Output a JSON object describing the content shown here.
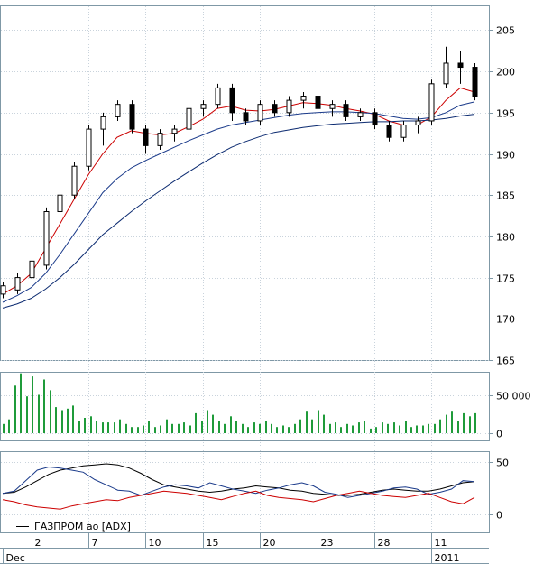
{
  "colors": {
    "frame": "#7f98a6",
    "candle_up_fill": "#ffffff",
    "candle_down_fill": "#000000",
    "candle_edge": "#000000",
    "ma_fast": "#cc0000",
    "ma_mid": "#1a3a8a",
    "ma_slow": "#0b2a70",
    "volume": "#1f9b3a",
    "adx": "#000000",
    "plus_di": "#1a3a8a",
    "minus_di": "#cc0000"
  },
  "legend": {
    "label": "ГАЗПРОМ ао [ADX]"
  },
  "x_axis": {
    "day_labels": [
      {
        "i": 2,
        "label": "2"
      },
      {
        "i": 6,
        "label": "7"
      },
      {
        "i": 10,
        "label": "10"
      },
      {
        "i": 14,
        "label": "15"
      },
      {
        "i": 18,
        "label": "20"
      },
      {
        "i": 22,
        "label": "23"
      },
      {
        "i": 26,
        "label": "28"
      },
      {
        "i": 30,
        "label": "11"
      }
    ],
    "month_labels": [
      {
        "i": 0,
        "label": "Dec"
      },
      {
        "i": 30,
        "label": "2011"
      }
    ]
  },
  "chart_data": [
    {
      "type": "candlestick",
      "panel": "price",
      "ylim": [
        165,
        208
      ],
      "yticks": [
        "165",
        "170",
        "175",
        "180",
        "185",
        "190",
        "195",
        "200",
        "205"
      ],
      "n_bars": 34,
      "ohlc": [
        [
          173.0,
          174.5,
          172.5,
          174.0
        ],
        [
          173.5,
          175.5,
          173.0,
          175.0
        ],
        [
          175.0,
          177.5,
          174.0,
          177.0
        ],
        [
          176.5,
          183.5,
          176.0,
          183.0
        ],
        [
          183.0,
          185.5,
          182.5,
          185.0
        ],
        [
          185.0,
          189.0,
          184.5,
          188.5
        ],
        [
          188.5,
          193.5,
          188.0,
          193.0
        ],
        [
          193.0,
          195.0,
          191.0,
          194.5
        ],
        [
          194.5,
          196.5,
          194.0,
          196.0
        ],
        [
          196.0,
          196.5,
          192.5,
          193.0
        ],
        [
          193.0,
          193.5,
          190.0,
          191.0
        ],
        [
          191.0,
          193.0,
          190.5,
          192.5
        ],
        [
          192.5,
          193.5,
          191.5,
          193.0
        ],
        [
          193.0,
          196.0,
          192.5,
          195.5
        ],
        [
          195.5,
          196.5,
          194.5,
          196.0
        ],
        [
          196.0,
          198.5,
          195.5,
          198.0
        ],
        [
          198.0,
          198.5,
          194.0,
          195.0
        ],
        [
          195.0,
          195.5,
          193.5,
          194.0
        ],
        [
          194.0,
          196.5,
          193.5,
          196.0
        ],
        [
          196.0,
          196.5,
          194.5,
          195.0
        ],
        [
          195.0,
          197.0,
          194.5,
          196.5
        ],
        [
          196.5,
          197.5,
          195.5,
          197.0
        ],
        [
          197.0,
          197.5,
          195.0,
          195.5
        ],
        [
          195.5,
          196.5,
          194.5,
          196.0
        ],
        [
          196.0,
          196.5,
          194.0,
          194.5
        ],
        [
          194.5,
          195.5,
          194.0,
          195.0
        ],
        [
          195.0,
          195.5,
          193.0,
          193.5
        ],
        [
          193.5,
          194.0,
          191.5,
          192.0
        ],
        [
          192.0,
          194.0,
          191.5,
          193.5
        ],
        [
          193.5,
          194.5,
          192.5,
          194.0
        ],
        [
          194.0,
          199.0,
          193.5,
          198.5
        ],
        [
          198.5,
          203.0,
          198.0,
          201.0
        ],
        [
          201.0,
          202.5,
          198.5,
          200.5
        ],
        [
          200.5,
          201.0,
          196.5,
          197.0
        ]
      ],
      "series": [
        {
          "name": "",
          "color_key": "ma_fast",
          "values": [
            173.0,
            174.0,
            175.5,
            178.5,
            181.5,
            184.5,
            187.5,
            190.0,
            192.0,
            192.8,
            192.5,
            192.3,
            192.5,
            193.3,
            194.2,
            195.5,
            195.8,
            195.3,
            195.2,
            195.4,
            195.8,
            196.2,
            196.1,
            195.9,
            195.5,
            195.2,
            194.8,
            194.0,
            193.5,
            193.5,
            194.5,
            196.5,
            198.0,
            197.5
          ]
        },
        {
          "name": "",
          "color_key": "ma_mid",
          "values": [
            172.0,
            172.8,
            173.8,
            175.5,
            177.8,
            180.3,
            182.8,
            185.3,
            187.0,
            188.3,
            189.2,
            190.0,
            190.8,
            191.6,
            192.3,
            193.0,
            193.5,
            193.8,
            194.1,
            194.4,
            194.7,
            194.9,
            195.0,
            195.1,
            195.1,
            195.0,
            194.9,
            194.6,
            194.3,
            194.2,
            194.4,
            195.0,
            195.9,
            196.3
          ]
        },
        {
          "name": "",
          "color_key": "ma_slow",
          "values": [
            171.3,
            171.8,
            172.5,
            173.6,
            175.0,
            176.6,
            178.4,
            180.2,
            181.6,
            183.0,
            184.3,
            185.5,
            186.7,
            187.8,
            188.9,
            189.9,
            190.8,
            191.5,
            192.1,
            192.6,
            192.9,
            193.2,
            193.4,
            193.6,
            193.7,
            193.8,
            193.9,
            193.9,
            194.0,
            194.0,
            194.1,
            194.3,
            194.6,
            194.8
          ]
        }
      ]
    },
    {
      "type": "bar",
      "panel": "volume",
      "ylim": [
        0,
        80000
      ],
      "yticks": [
        "0",
        "50 000"
      ],
      "values": [
        12000,
        18000,
        62000,
        78000,
        48000,
        74000,
        50000,
        70000,
        56000,
        34000,
        30000,
        32000,
        36000,
        16000,
        20000,
        22000,
        16000,
        14000,
        14000,
        14000,
        18000,
        12000,
        8000,
        8000,
        10000,
        16000,
        8000,
        10000,
        18000,
        12000,
        12000,
        14000,
        10000,
        26000,
        16000,
        30000,
        24000,
        16000,
        12000,
        22000,
        16000,
        12000,
        8000,
        14000,
        12000,
        16000,
        12000,
        8000,
        10000,
        8000,
        12000,
        18000,
        28000,
        18000,
        30000,
        24000,
        12000,
        14000,
        8000,
        12000,
        10000,
        14000,
        16000,
        6000,
        8000,
        14000,
        12000,
        14000,
        10000,
        16000,
        8000,
        10000,
        10000,
        12000,
        12000,
        18000,
        24000,
        28000,
        16000,
        26000,
        22000,
        26000
      ]
    },
    {
      "type": "line",
      "panel": "adx",
      "ylim": [
        0,
        60
      ],
      "yticks": [
        "0",
        "50"
      ],
      "series": [
        {
          "name": "",
          "color_key": "adx",
          "values": [
            20,
            21,
            26,
            32,
            38,
            42,
            44,
            46,
            47,
            48,
            47,
            44,
            39,
            33,
            28,
            26,
            24,
            22,
            21,
            22,
            24,
            25,
            27,
            26,
            25,
            23,
            22,
            20,
            19,
            18,
            18,
            19,
            21,
            23,
            24,
            23,
            22,
            22,
            24,
            27,
            30,
            31
          ]
        },
        {
          "name": "",
          "color_key": "plus_di",
          "values": [
            20,
            22,
            32,
            42,
            45,
            44,
            42,
            40,
            33,
            28,
            23,
            22,
            18,
            22,
            26,
            28,
            27,
            25,
            30,
            27,
            24,
            22,
            20,
            23,
            25,
            28,
            30,
            27,
            21,
            19,
            16,
            18,
            20,
            22,
            25,
            26,
            24,
            19,
            21,
            24,
            32,
            31
          ]
        },
        {
          "name": "",
          "color_key": "minus_di",
          "values": [
            14,
            12,
            9,
            7,
            6,
            5,
            8,
            10,
            12,
            14,
            13,
            16,
            18,
            20,
            22,
            21,
            20,
            18,
            16,
            14,
            17,
            20,
            22,
            18,
            16,
            15,
            14,
            12,
            15,
            18,
            20,
            22,
            20,
            18,
            17,
            16,
            18,
            20,
            16,
            12,
            10,
            16
          ]
        }
      ]
    }
  ]
}
